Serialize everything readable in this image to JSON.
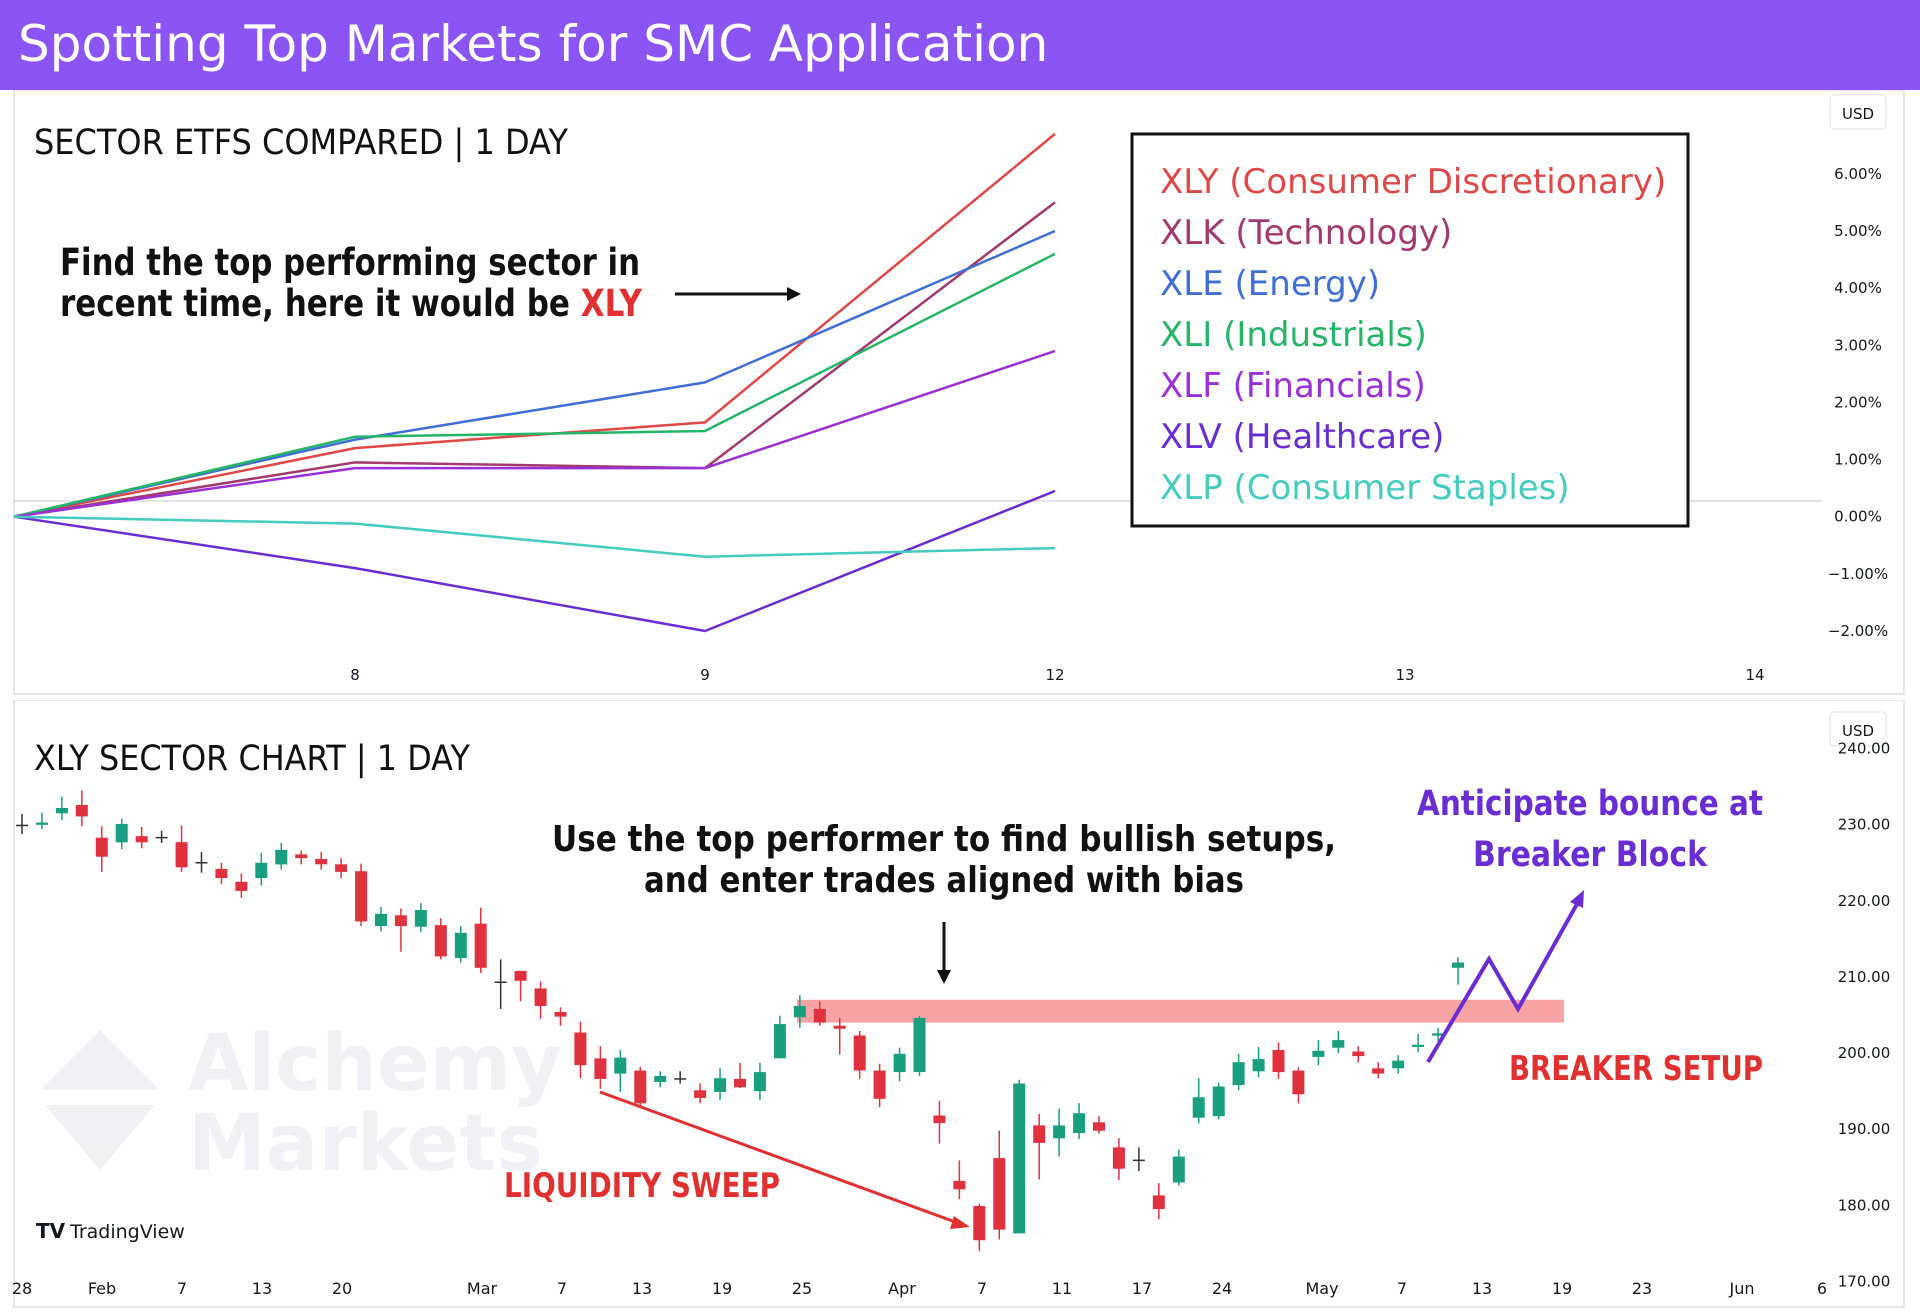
{
  "header": {
    "title": "Spotting Top Markets for SMC Application"
  },
  "colors": {
    "header_bg": "#8b55f6",
    "xly": "#e04848",
    "xlk": "#a23a6f",
    "xle": "#3f6fd6",
    "xli": "#25b567",
    "xlf": "#9b2fd8",
    "xlv": "#6a2dd4",
    "xlp": "#45cbbf",
    "bull": "#1a9e80",
    "bear": "#e0313e",
    "accent_red": "#e03030",
    "accent_purple": "#6a2dd4",
    "breaker_zone": "#f7a3a3"
  },
  "top_panel": {
    "title": "SECTOR ETFS COMPARED | 1 DAY",
    "annotation_line1": "Find the top performing sector in",
    "annotation_line2_prefix": "recent time, here it would be ",
    "annotation_line2_highlight": "XLY",
    "currency": "USD"
  },
  "bottom_panel": {
    "title": "XLY SECTOR CHART | 1 DAY",
    "annotation_line1": "Use the top performer to find bullish setups,",
    "annotation_line2": "and enter trades aligned with bias",
    "bounce_line1": "Anticipate bounce at",
    "bounce_line2": "Breaker Block",
    "breaker_label": "BREAKER SETUP",
    "sweep_label": "LIQUIDITY SWEEP",
    "currency": "USD",
    "watermark_line1": "Alchemy",
    "watermark_line2": "Markets",
    "tradingview": "TradingView"
  },
  "chart_data": [
    {
      "type": "line",
      "title": "SECTOR ETFS COMPARED | 1 DAY",
      "x": [
        "7",
        "8",
        "9",
        "12"
      ],
      "x_ticks": [
        "8",
        "9",
        "12",
        "13",
        "14"
      ],
      "y_ticks": [
        "6.00%",
        "5.00%",
        "4.00%",
        "3.00%",
        "2.00%",
        "1.00%",
        "0.00%",
        "−1.00%",
        "−2.00%"
      ],
      "ylim": [
        -2.7,
        7.1
      ],
      "unit": "%",
      "legend_position": "top-right",
      "series": [
        {
          "name": "XLY (Consumer Discretionary)",
          "color": "#e04848",
          "values": [
            0,
            1.2,
            1.65,
            6.7
          ]
        },
        {
          "name": "XLK (Technology)",
          "color": "#a23a6f",
          "values": [
            0,
            0.95,
            0.85,
            5.5
          ]
        },
        {
          "name": "XLE (Energy)",
          "color": "#3f6fd6",
          "values": [
            0,
            1.35,
            2.35,
            5.0
          ]
        },
        {
          "name": "XLI (Industrials)",
          "color": "#25b567",
          "values": [
            0,
            1.4,
            1.5,
            4.6
          ]
        },
        {
          "name": "XLF (Financials)",
          "color": "#9b2fd8",
          "values": [
            0,
            0.85,
            0.85,
            2.9
          ]
        },
        {
          "name": "XLV (Healthcare)",
          "color": "#6a2dd4",
          "values": [
            0,
            -0.9,
            -2.0,
            0.45
          ]
        },
        {
          "name": "XLP (Consumer Staples)",
          "color": "#45cbbf",
          "values": [
            0,
            -0.12,
            -0.7,
            -0.55
          ]
        }
      ]
    },
    {
      "type": "candlestick",
      "title": "XLY SECTOR CHART | 1 DAY",
      "x_ticks": [
        "28",
        "Feb",
        "7",
        "13",
        "20",
        "Mar",
        "7",
        "13",
        "19",
        "25",
        "Apr",
        "7",
        "11",
        "17",
        "24",
        "May",
        "7",
        "13",
        "19",
        "23",
        "Jun",
        "6"
      ],
      "y_ticks": [
        "240.00",
        "230.00",
        "220.00",
        "210.00",
        "200.00",
        "190.00",
        "180.00",
        "170.00"
      ],
      "ylim": [
        166.5,
        243.5
      ],
      "breaker_zone": [
        204.0,
        207.0
      ],
      "candles": [
        [
          230.0,
          230.0,
          231.4,
          228.8
        ],
        [
          230.0,
          230.3,
          231.6,
          229.4
        ],
        [
          231.5,
          232.2,
          233.7,
          230.6
        ],
        [
          232.6,
          231.1,
          234.5,
          229.8
        ],
        [
          228.3,
          225.8,
          229.8,
          223.8
        ],
        [
          227.7,
          230.1,
          230.8,
          226.8
        ],
        [
          228.5,
          227.7,
          229.7,
          226.9
        ],
        [
          228.3,
          228.4,
          229.2,
          227.6
        ],
        [
          227.7,
          224.4,
          229.9,
          223.8
        ],
        [
          225.1,
          225.0,
          226.4,
          223.7
        ],
        [
          224.2,
          223.0,
          225.0,
          222.2
        ],
        [
          222.5,
          221.3,
          223.6,
          220.4
        ],
        [
          223.0,
          225.0,
          226.3,
          222.0
        ],
        [
          224.8,
          226.7,
          227.6,
          224.1
        ],
        [
          226.1,
          225.6,
          226.6,
          224.8
        ],
        [
          225.5,
          224.8,
          226.4,
          224.1
        ],
        [
          224.8,
          223.8,
          225.6,
          223.0
        ],
        [
          223.9,
          217.3,
          224.9,
          216.7
        ],
        [
          216.7,
          218.3,
          219.2,
          216.0
        ],
        [
          218.1,
          216.7,
          219.0,
          213.3
        ],
        [
          216.6,
          218.8,
          219.7,
          215.9
        ],
        [
          216.8,
          212.7,
          217.7,
          212.3
        ],
        [
          212.5,
          215.8,
          216.7,
          211.9
        ],
        [
          217.0,
          211.2,
          219.1,
          210.5
        ],
        [
          209.4,
          209.4,
          212.3,
          205.8
        ],
        [
          210.8,
          209.5,
          210.8,
          206.8
        ],
        [
          208.5,
          206.2,
          209.4,
          204.5
        ],
        [
          205.4,
          204.8,
          206.0,
          203.6
        ],
        [
          202.7,
          198.4,
          204.1,
          196.7
        ],
        [
          199.3,
          196.6,
          200.9,
          195.3
        ],
        [
          197.3,
          199.4,
          200.4,
          194.9
        ],
        [
          197.7,
          193.4,
          198.2,
          192.8
        ],
        [
          196.2,
          197.0,
          197.6,
          195.5
        ],
        [
          196.7,
          196.7,
          197.6,
          196.0
        ],
        [
          195.1,
          194.1,
          196.0,
          193.4
        ],
        [
          194.9,
          196.7,
          198.0,
          193.8
        ],
        [
          196.6,
          195.5,
          198.7,
          195.4
        ],
        [
          195.0,
          197.5,
          198.7,
          193.8
        ],
        [
          199.3,
          203.8,
          204.9,
          199.3
        ],
        [
          204.7,
          206.2,
          207.6,
          203.3
        ],
        [
          205.8,
          204.0,
          206.8,
          203.6
        ],
        [
          203.6,
          203.2,
          204.6,
          199.8
        ],
        [
          202.3,
          197.7,
          202.9,
          196.6
        ],
        [
          197.7,
          194.0,
          198.6,
          192.9
        ],
        [
          197.5,
          199.9,
          200.7,
          196.3
        ],
        [
          197.5,
          204.6,
          204.9,
          197.0
        ],
        [
          191.8,
          190.8,
          193.7,
          188.1
        ],
        [
          183.2,
          182.1,
          185.9,
          180.8
        ],
        [
          179.9,
          175.4,
          180.2,
          174.0
        ],
        [
          186.2,
          176.8,
          189.8,
          175.5
        ],
        [
          176.3,
          196.0,
          196.5,
          176.3
        ],
        [
          190.5,
          188.2,
          192.0,
          183.4
        ],
        [
          188.8,
          190.5,
          192.7,
          186.4
        ],
        [
          189.5,
          192.1,
          193.4,
          188.7
        ],
        [
          190.9,
          189.8,
          191.7,
          189.4
        ],
        [
          187.6,
          184.8,
          188.8,
          183.3
        ],
        [
          186.0,
          186.0,
          187.6,
          184.5
        ],
        [
          181.3,
          179.5,
          182.9,
          178.2
        ],
        [
          183.0,
          186.4,
          187.3,
          182.6
        ],
        [
          191.5,
          194.2,
          196.7,
          190.8
        ],
        [
          191.7,
          195.6,
          196.1,
          191.3
        ],
        [
          195.8,
          198.8,
          199.9,
          195.1
        ],
        [
          197.6,
          199.2,
          200.8,
          196.8
        ],
        [
          200.4,
          197.5,
          201.4,
          196.6
        ],
        [
          197.7,
          194.6,
          198.1,
          193.4
        ],
        [
          199.5,
          200.3,
          201.7,
          198.4
        ],
        [
          200.7,
          201.7,
          202.9,
          200.0
        ],
        [
          200.2,
          199.6,
          200.9,
          198.8
        ],
        [
          198.0,
          197.3,
          198.8,
          196.7
        ],
        [
          198.0,
          199.0,
          199.7,
          197.3
        ],
        [
          200.8,
          201.1,
          202.5,
          200.1
        ],
        [
          202.3,
          202.6,
          203.3,
          201.6
        ],
        [
          211.2,
          211.9,
          212.6,
          209.0
        ]
      ]
    }
  ]
}
